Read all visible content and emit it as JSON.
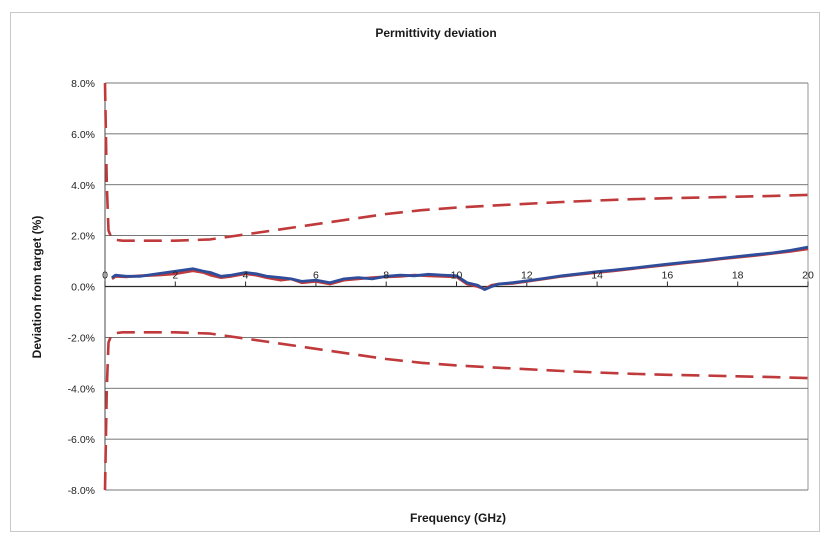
{
  "chart_data": {
    "type": "line",
    "title": "Permittivity deviation",
    "xlabel": "Frequency (GHz)",
    "ylabel": "Deviation from target (%)",
    "xlim": [
      0,
      20
    ],
    "ylim": [
      -8,
      8
    ],
    "x_ticks": [
      0,
      2,
      4,
      6,
      8,
      10,
      12,
      14,
      16,
      18,
      20
    ],
    "x_tick_labels": [
      "0",
      "2",
      "4",
      "6",
      "8",
      "10",
      "12",
      "14",
      "16",
      "18",
      "20"
    ],
    "y_ticks": [
      8,
      6,
      4,
      2,
      0,
      -2,
      -4,
      -6,
      -8
    ],
    "y_tick_labels": [
      "8.0%",
      "6.0%",
      "4.0%",
      "2.0%",
      "0.0%",
      "-2.0%",
      "-4.0%",
      "-6.0%",
      "-8.0%"
    ],
    "grid": "horizontal",
    "legend": "none",
    "series": [
      {
        "style": "dashed",
        "color": "#c0393b",
        "x": [
          0,
          0.05,
          0.1,
          0.2,
          0.5,
          1,
          2,
          3,
          4,
          5,
          6,
          7,
          8,
          9,
          10,
          11,
          12,
          13,
          14,
          15,
          16,
          17,
          18,
          19,
          20
        ],
        "y": [
          8,
          4,
          2.2,
          1.85,
          1.8,
          1.8,
          1.8,
          1.85,
          2.05,
          2.25,
          2.45,
          2.65,
          2.85,
          3.0,
          3.1,
          3.18,
          3.25,
          3.32,
          3.38,
          3.43,
          3.47,
          3.5,
          3.53,
          3.56,
          3.6
        ]
      },
      {
        "style": "dashed",
        "color": "#c0393b",
        "x": [
          0,
          0.05,
          0.1,
          0.2,
          0.5,
          1,
          2,
          3,
          4,
          5,
          6,
          7,
          8,
          9,
          10,
          11,
          12,
          13,
          14,
          15,
          16,
          17,
          18,
          19,
          20
        ],
        "y": [
          -8,
          -4,
          -2.2,
          -1.85,
          -1.8,
          -1.8,
          -1.8,
          -1.85,
          -2.05,
          -2.25,
          -2.45,
          -2.65,
          -2.85,
          -3.0,
          -3.1,
          -3.18,
          -3.25,
          -3.32,
          -3.38,
          -3.43,
          -3.47,
          -3.5,
          -3.53,
          -3.56,
          -3.6
        ]
      },
      {
        "style": "solid",
        "color": "#c0393b",
        "x": [
          0.2,
          0.3,
          0.6,
          1,
          1.5,
          2,
          2.5,
          2.8,
          3,
          3.3,
          3.6,
          4,
          4.3,
          4.6,
          5,
          5.3,
          5.6,
          6,
          6.4,
          6.8,
          7.2,
          7.6,
          8,
          8.4,
          8.8,
          9.2,
          9.6,
          10,
          10.3,
          10.6,
          10.8,
          11,
          11.2,
          11.6,
          12,
          12.5,
          13,
          13.5,
          14,
          14.5,
          15,
          15.5,
          16,
          16.5,
          17,
          17.5,
          18,
          18.5,
          19,
          19.5,
          20
        ],
        "y": [
          0.3,
          0.4,
          0.38,
          0.42,
          0.45,
          0.5,
          0.62,
          0.55,
          0.45,
          0.35,
          0.4,
          0.5,
          0.45,
          0.35,
          0.25,
          0.3,
          0.15,
          0.2,
          0.1,
          0.25,
          0.3,
          0.35,
          0.38,
          0.4,
          0.45,
          0.42,
          0.4,
          0.38,
          0.1,
          0.0,
          -0.1,
          0.05,
          0.1,
          0.12,
          0.2,
          0.3,
          0.4,
          0.48,
          0.55,
          0.62,
          0.7,
          0.78,
          0.85,
          0.93,
          1.0,
          1.08,
          1.15,
          1.22,
          1.3,
          1.38,
          1.48
        ]
      },
      {
        "style": "solid",
        "color": "#2e4d9a",
        "x": [
          0.2,
          0.3,
          0.6,
          1,
          1.5,
          2,
          2.5,
          2.8,
          3,
          3.3,
          3.6,
          4,
          4.3,
          4.6,
          5,
          5.3,
          5.6,
          6,
          6.4,
          6.8,
          7.2,
          7.6,
          8,
          8.4,
          8.8,
          9.2,
          9.6,
          10,
          10.3,
          10.6,
          10.8,
          11,
          11.2,
          11.6,
          12,
          12.5,
          13,
          13.5,
          14,
          14.5,
          15,
          15.5,
          16,
          16.5,
          17,
          17.5,
          18,
          18.5,
          19,
          19.5,
          20
        ],
        "y": [
          0.35,
          0.45,
          0.4,
          0.4,
          0.5,
          0.6,
          0.7,
          0.6,
          0.55,
          0.4,
          0.45,
          0.55,
          0.5,
          0.4,
          0.35,
          0.3,
          0.2,
          0.25,
          0.15,
          0.3,
          0.35,
          0.3,
          0.4,
          0.45,
          0.42,
          0.48,
          0.45,
          0.42,
          0.15,
          0.05,
          -0.12,
          0.0,
          0.1,
          0.15,
          0.22,
          0.32,
          0.42,
          0.5,
          0.58,
          0.65,
          0.72,
          0.8,
          0.88,
          0.95,
          1.02,
          1.1,
          1.18,
          1.25,
          1.32,
          1.42,
          1.55
        ]
      }
    ]
  }
}
